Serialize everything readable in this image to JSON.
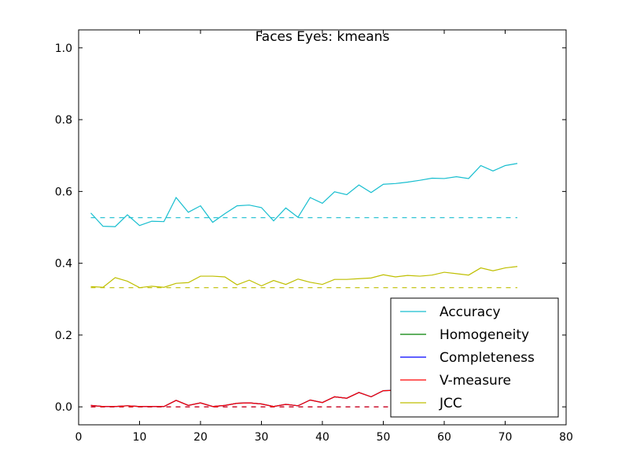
{
  "chart_data": {
    "type": "line",
    "title": "Faces Eyes: kmeans",
    "xlabel": "",
    "ylabel": "",
    "xlim": [
      0,
      80
    ],
    "ylim": [
      -0.05,
      1.05
    ],
    "x_ticks": [
      0,
      10,
      20,
      30,
      40,
      50,
      60,
      70,
      80
    ],
    "y_ticks": [
      0.0,
      0.2,
      0.4,
      0.6,
      0.8,
      1.0
    ],
    "x_tick_labels": [
      "0",
      "10",
      "20",
      "30",
      "40",
      "50",
      "60",
      "70",
      "80"
    ],
    "y_tick_labels": [
      "0.0",
      "0.2",
      "0.4",
      "0.6",
      "0.8",
      "1.0"
    ],
    "grid": false,
    "legend_position": "lower-right",
    "x": [
      2,
      4,
      6,
      8,
      10,
      12,
      14,
      16,
      18,
      20,
      22,
      24,
      26,
      28,
      30,
      32,
      34,
      36,
      38,
      40,
      42,
      44,
      46,
      48,
      50,
      52,
      54,
      56,
      58,
      60,
      62,
      64,
      66,
      68,
      70,
      72
    ],
    "series": [
      {
        "name": "Accuracy",
        "color": "#17becf",
        "values": [
          0.54,
          0.503,
          0.502,
          0.535,
          0.505,
          0.517,
          0.516,
          0.583,
          0.542,
          0.56,
          0.514,
          0.538,
          0.56,
          0.562,
          0.555,
          0.518,
          0.554,
          0.528,
          0.583,
          0.567,
          0.599,
          0.591,
          0.618,
          0.597,
          0.62,
          0.622,
          0.626,
          0.631,
          0.637,
          0.636,
          0.641,
          0.636,
          0.672,
          0.657,
          0.672,
          0.678
        ],
        "baseline": 0.527
      },
      {
        "name": "Homogeneity",
        "color": "#008000",
        "values": [
          0.004,
          0.001,
          0.001,
          0.003,
          0.001,
          0.001,
          0.001,
          0.018,
          0.004,
          0.011,
          0.001,
          0.004,
          0.01,
          0.011,
          0.008,
          0.001,
          0.007,
          0.003,
          0.019,
          0.012,
          0.028,
          0.024,
          0.04,
          0.028,
          0.045,
          0.046,
          0.05,
          0.055,
          0.06,
          0.06,
          0.065,
          0.062,
          0.09,
          0.08,
          0.092,
          0.098
        ],
        "baseline": 0.0
      },
      {
        "name": "Completeness",
        "color": "#0000ff",
        "values": [
          0.004,
          0.001,
          0.001,
          0.003,
          0.001,
          0.001,
          0.001,
          0.018,
          0.004,
          0.011,
          0.001,
          0.004,
          0.01,
          0.011,
          0.008,
          0.001,
          0.007,
          0.003,
          0.019,
          0.012,
          0.028,
          0.024,
          0.04,
          0.028,
          0.045,
          0.046,
          0.05,
          0.055,
          0.06,
          0.06,
          0.065,
          0.062,
          0.09,
          0.08,
          0.092,
          0.098
        ],
        "baseline": 0.0
      },
      {
        "name": "V-measure",
        "color": "#ff0000",
        "values": [
          0.004,
          0.001,
          0.001,
          0.003,
          0.001,
          0.001,
          0.001,
          0.018,
          0.004,
          0.011,
          0.001,
          0.004,
          0.01,
          0.011,
          0.008,
          0.001,
          0.007,
          0.003,
          0.019,
          0.012,
          0.028,
          0.024,
          0.04,
          0.028,
          0.045,
          0.046,
          0.05,
          0.055,
          0.06,
          0.06,
          0.065,
          0.062,
          0.09,
          0.08,
          0.092,
          0.098
        ],
        "baseline": 0.0
      },
      {
        "name": "JCC",
        "color": "#bfbf00",
        "values": [
          0.335,
          0.333,
          0.36,
          0.35,
          0.332,
          0.336,
          0.333,
          0.344,
          0.346,
          0.364,
          0.364,
          0.362,
          0.34,
          0.353,
          0.337,
          0.352,
          0.341,
          0.356,
          0.347,
          0.341,
          0.355,
          0.355,
          0.357,
          0.359,
          0.368,
          0.362,
          0.366,
          0.364,
          0.367,
          0.375,
          0.371,
          0.367,
          0.387,
          0.379,
          0.387,
          0.391
        ],
        "baseline": 0.332
      }
    ]
  }
}
